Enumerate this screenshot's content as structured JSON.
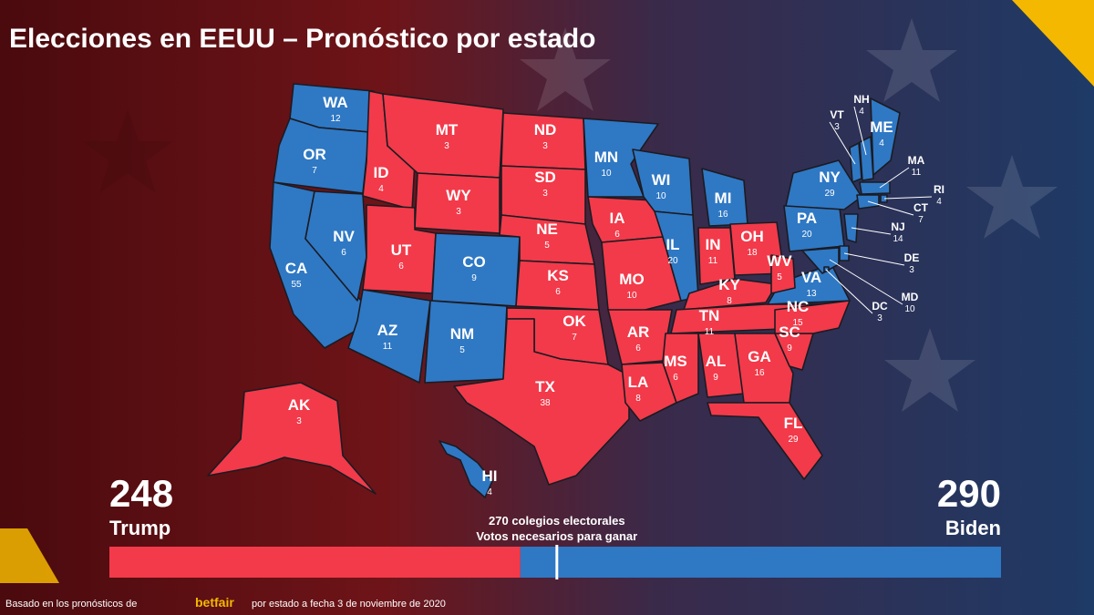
{
  "title": "Elecciones en EEUU – Pronóstico por estado",
  "candidates": [
    {
      "name": "Trump",
      "total": 248,
      "color": "#f23a4a"
    },
    {
      "name": "Biden",
      "total": 290,
      "color": "#2f78c4"
    }
  ],
  "states": [
    {
      "abbr": "WA",
      "votes": 12,
      "winner": 1
    },
    {
      "abbr": "OR",
      "votes": 7,
      "winner": 1
    },
    {
      "abbr": "CA",
      "votes": 55,
      "winner": 1
    },
    {
      "abbr": "NV",
      "votes": 6,
      "winner": 1
    },
    {
      "abbr": "ID",
      "votes": 4,
      "winner": 0
    },
    {
      "abbr": "MT",
      "votes": 3,
      "winner": 0
    },
    {
      "abbr": "WY",
      "votes": 3,
      "winner": 0
    },
    {
      "abbr": "UT",
      "votes": 6,
      "winner": 0
    },
    {
      "abbr": "CO",
      "votes": 9,
      "winner": 1
    },
    {
      "abbr": "AZ",
      "votes": 11,
      "winner": 1
    },
    {
      "abbr": "NM",
      "votes": 5,
      "winner": 1
    },
    {
      "abbr": "ND",
      "votes": 3,
      "winner": 0
    },
    {
      "abbr": "SD",
      "votes": 3,
      "winner": 0
    },
    {
      "abbr": "NE",
      "votes": 5,
      "winner": 0
    },
    {
      "abbr": "KS",
      "votes": 6,
      "winner": 0
    },
    {
      "abbr": "OK",
      "votes": 7,
      "winner": 0
    },
    {
      "abbr": "TX",
      "votes": 38,
      "winner": 0
    },
    {
      "abbr": "MN",
      "votes": 10,
      "winner": 1
    },
    {
      "abbr": "IA",
      "votes": 6,
      "winner": 0
    },
    {
      "abbr": "MO",
      "votes": 10,
      "winner": 0
    },
    {
      "abbr": "AR",
      "votes": 6,
      "winner": 0
    },
    {
      "abbr": "LA",
      "votes": 8,
      "winner": 0
    },
    {
      "abbr": "WI",
      "votes": 10,
      "winner": 1
    },
    {
      "abbr": "IL",
      "votes": 20,
      "winner": 1
    },
    {
      "abbr": "MI",
      "votes": 16,
      "winner": 1
    },
    {
      "abbr": "IN",
      "votes": 11,
      "winner": 0
    },
    {
      "abbr": "OH",
      "votes": 18,
      "winner": 0
    },
    {
      "abbr": "KY",
      "votes": 8,
      "winner": 0
    },
    {
      "abbr": "TN",
      "votes": 11,
      "winner": 0
    },
    {
      "abbr": "MS",
      "votes": 6,
      "winner": 0
    },
    {
      "abbr": "AL",
      "votes": 9,
      "winner": 0
    },
    {
      "abbr": "GA",
      "votes": 16,
      "winner": 0
    },
    {
      "abbr": "FL",
      "votes": 29,
      "winner": 0
    },
    {
      "abbr": "SC",
      "votes": 9,
      "winner": 0
    },
    {
      "abbr": "NC",
      "votes": 15,
      "winner": 0
    },
    {
      "abbr": "VA",
      "votes": 13,
      "winner": 1
    },
    {
      "abbr": "WV",
      "votes": 5,
      "winner": 0
    },
    {
      "abbr": "PA",
      "votes": 20,
      "winner": 1
    },
    {
      "abbr": "NY",
      "votes": 29,
      "winner": 1
    },
    {
      "abbr": "VT",
      "votes": 3,
      "winner": 1
    },
    {
      "abbr": "NH",
      "votes": 4,
      "winner": 1
    },
    {
      "abbr": "ME",
      "votes": 4,
      "winner": 1
    },
    {
      "abbr": "MA",
      "votes": 11,
      "winner": 1
    },
    {
      "abbr": "RI",
      "votes": 4,
      "winner": 1
    },
    {
      "abbr": "CT",
      "votes": 7,
      "winner": 1
    },
    {
      "abbr": "NJ",
      "votes": 14,
      "winner": 1
    },
    {
      "abbr": "DE",
      "votes": 3,
      "winner": 1
    },
    {
      "abbr": "MD",
      "votes": 10,
      "winner": 1
    },
    {
      "abbr": "DC",
      "votes": 3,
      "winner": 1
    },
    {
      "abbr": "AK",
      "votes": 3,
      "winner": 0
    },
    {
      "abbr": "HI",
      "votes": 4,
      "winner": 1
    }
  ],
  "threshold": {
    "value": 270,
    "label": "270 colegios electorales"
  },
  "threshold_note": "Votos necesarios para ganar",
  "footer": {
    "before": "Basado en los pronósticos de",
    "brand": "betfair",
    "after": "por estado a fecha 3 de noviembre de 2020"
  }
}
